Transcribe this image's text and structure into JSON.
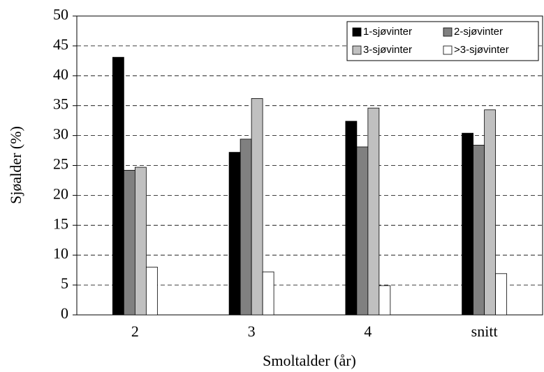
{
  "chart_data": {
    "type": "bar",
    "xlabel": "Smoltalder (år)",
    "ylabel": "Sjøalder (%)",
    "categories": [
      "2",
      "3",
      "4",
      "snitt"
    ],
    "series": [
      {
        "name": "1-sjøvinter",
        "color": "#000000",
        "values": [
          43.1,
          27.2,
          32.4,
          30.4
        ]
      },
      {
        "name": "2-sjøvinter",
        "color": "#808080",
        "values": [
          24.2,
          29.4,
          28.1,
          28.4
        ]
      },
      {
        "name": "3-sjøvinter",
        "color": "#c0c0c0",
        "values": [
          24.7,
          36.2,
          34.6,
          34.3
        ]
      },
      {
        "name": ">3-sjøvinter",
        "color": "#ffffff",
        "values": [
          8.0,
          7.2,
          4.9,
          6.9
        ]
      }
    ],
    "ylim": [
      0,
      50
    ],
    "yticks": [
      0,
      5,
      10,
      15,
      20,
      25,
      30,
      35,
      40,
      45,
      50
    ],
    "grid": true,
    "legend": "upper right"
  }
}
